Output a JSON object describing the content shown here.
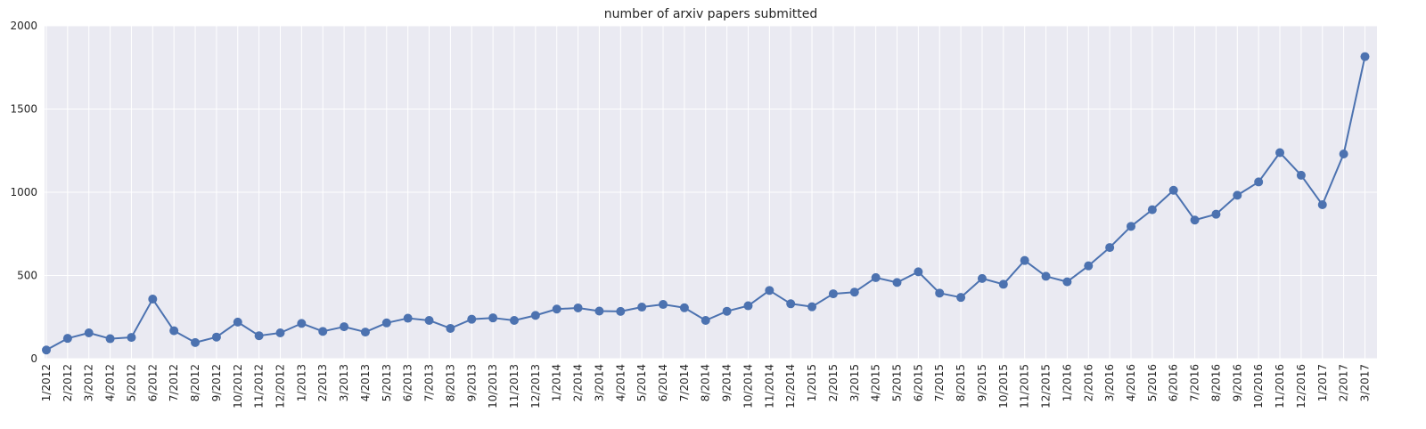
{
  "chart_data": {
    "type": "line",
    "title": "number of arxiv papers submitted",
    "xlabel": "",
    "ylabel": "",
    "ylim": [
      0,
      2000
    ],
    "yticks": [
      0,
      500,
      1000,
      1500,
      2000
    ],
    "grid": true,
    "marker": "circle",
    "categories": [
      "1/2012",
      "2/2012",
      "3/2012",
      "4/2012",
      "5/2012",
      "6/2012",
      "7/2012",
      "8/2012",
      "9/2012",
      "10/2012",
      "11/2012",
      "12/2012",
      "1/2013",
      "2/2013",
      "3/2013",
      "4/2013",
      "5/2013",
      "6/2013",
      "7/2013",
      "8/2013",
      "9/2013",
      "10/2013",
      "11/2013",
      "12/2013",
      "1/2014",
      "2/2014",
      "3/2014",
      "4/2014",
      "5/2014",
      "6/2014",
      "7/2014",
      "8/2014",
      "9/2014",
      "10/2014",
      "11/2014",
      "12/2014",
      "1/2015",
      "2/2015",
      "3/2015",
      "4/2015",
      "5/2015",
      "6/2015",
      "7/2015",
      "8/2015",
      "9/2015",
      "10/2015",
      "11/2015",
      "12/2015",
      "1/2016",
      "2/2016",
      "3/2016",
      "4/2016",
      "5/2016",
      "6/2016",
      "7/2016",
      "8/2016",
      "9/2016",
      "10/2016",
      "11/2016",
      "12/2016",
      "1/2017",
      "2/2017",
      "3/2017"
    ],
    "series": [
      {
        "color": "#4c72b0",
        "values": [
          52,
          122,
          155,
          120,
          128,
          358,
          168,
          97,
          130,
          220,
          138,
          155,
          212,
          164,
          192,
          160,
          215,
          243,
          230,
          182,
          237,
          245,
          230,
          260,
          298,
          305,
          286,
          284,
          310,
          326,
          306,
          230,
          285,
          318,
          410,
          330,
          312,
          390,
          400,
          487,
          458,
          522,
          394,
          368,
          482,
          447,
          590,
          495,
          462,
          558,
          668,
          795,
          895,
          1012,
          833,
          868,
          982,
          1062,
          1238,
          1102,
          925,
          1230,
          1815
        ]
      }
    ]
  },
  "colors": {
    "plot_background": "#eaeaf2",
    "grid": "#ffffff",
    "text": "#262626"
  }
}
